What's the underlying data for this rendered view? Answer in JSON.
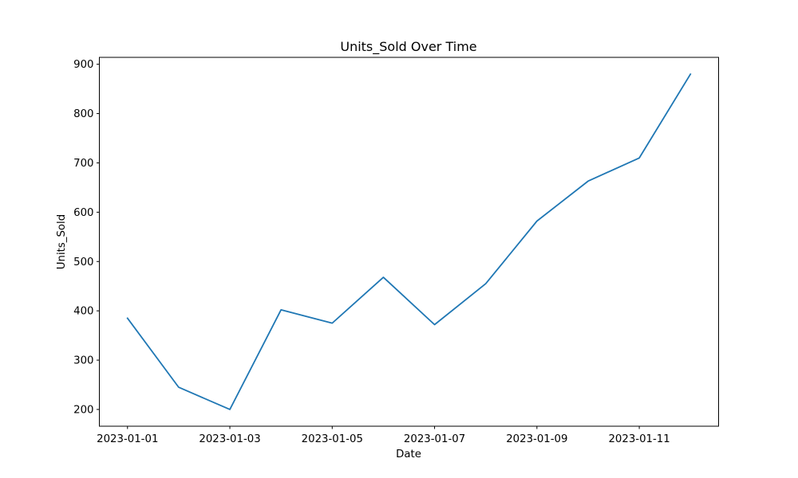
{
  "chart_data": {
    "type": "line",
    "title": "Units_Sold Over Time",
    "xlabel": "Date",
    "ylabel": "Units_Sold",
    "x": [
      "2023-01-01",
      "2023-01-02",
      "2023-01-03",
      "2023-01-04",
      "2023-01-05",
      "2023-01-06",
      "2023-01-07",
      "2023-01-08",
      "2023-01-09",
      "2023-01-10",
      "2023-01-11",
      "2023-01-12"
    ],
    "series": [
      {
        "values": [
          385,
          245,
          200,
          402,
          375,
          468,
          372,
          455,
          582,
          663,
          710,
          880
        ],
        "color": "#1f77b4"
      }
    ],
    "xticks": [
      "2023-01-01",
      "2023-01-03",
      "2023-01-05",
      "2023-01-07",
      "2023-01-09",
      "2023-01-11"
    ],
    "yticks": [
      200,
      300,
      400,
      500,
      600,
      700,
      800,
      900
    ],
    "xlim": [
      "2022-12-31T10:48",
      "2023-01-12T13:12"
    ],
    "ylim": [
      166,
      914
    ],
    "grid": false,
    "legend": "none"
  }
}
